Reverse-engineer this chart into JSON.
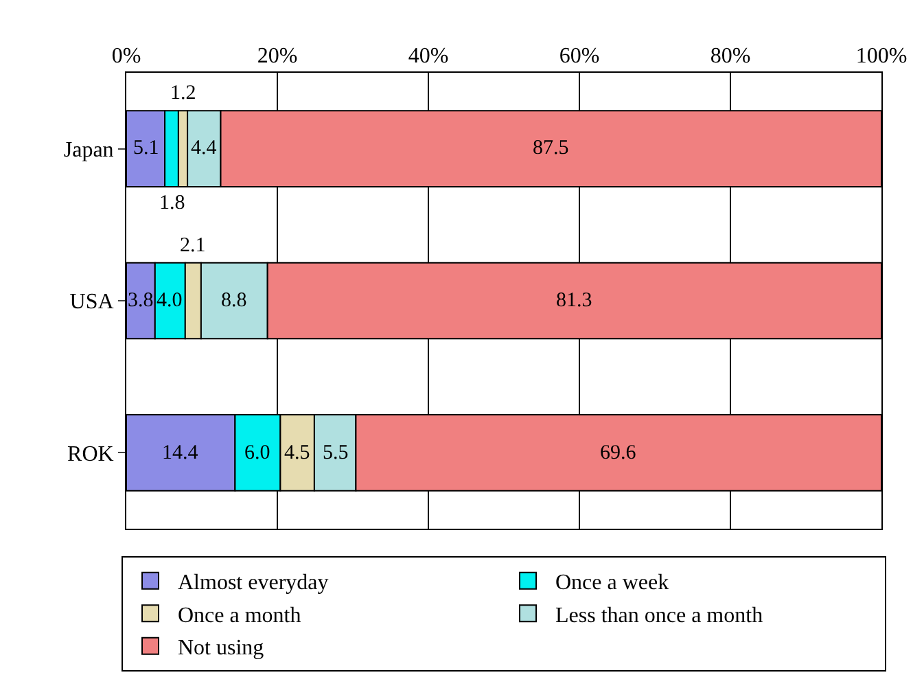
{
  "chart_data": {
    "type": "bar",
    "orientation": "horizontal",
    "stacked": true,
    "categories": [
      "Japan",
      "USA",
      "ROK"
    ],
    "series": [
      {
        "name": "Almost everyday",
        "color": "#8c8ce6",
        "values": [
          5.1,
          3.8,
          14.4
        ],
        "value_labels": [
          "5.1",
          "3.8",
          "14.4"
        ]
      },
      {
        "name": "Once a week",
        "color": "#00f0f0",
        "values": [
          1.8,
          4.0,
          6.0
        ],
        "value_labels": [
          "1.8",
          "4.0",
          "6.0"
        ]
      },
      {
        "name": "Once a month",
        "color": "#e6dcb0",
        "values": [
          1.2,
          2.1,
          4.5
        ],
        "value_labels": [
          "1.2",
          "2.1",
          "4.5"
        ]
      },
      {
        "name": "Less than once a month",
        "color": "#b0e0e0",
        "values": [
          4.4,
          8.8,
          5.5
        ],
        "value_labels": [
          "4.4",
          "8.8",
          "5.5"
        ]
      },
      {
        "name": "Not using",
        "color": "#f08080",
        "values": [
          87.5,
          81.3,
          69.6
        ],
        "value_labels": [
          "87.5",
          "81.3",
          "69.6"
        ]
      }
    ],
    "xlim": [
      0,
      100
    ],
    "xticks": [
      {
        "value": 0,
        "label": "0%"
      },
      {
        "value": 20,
        "label": "20%"
      },
      {
        "value": 40,
        "label": "40%"
      },
      {
        "value": 60,
        "label": "60%"
      },
      {
        "value": 80,
        "label": "80%"
      },
      {
        "value": 100,
        "label": "100%"
      }
    ],
    "grid": "x",
    "legend": "bottom"
  }
}
